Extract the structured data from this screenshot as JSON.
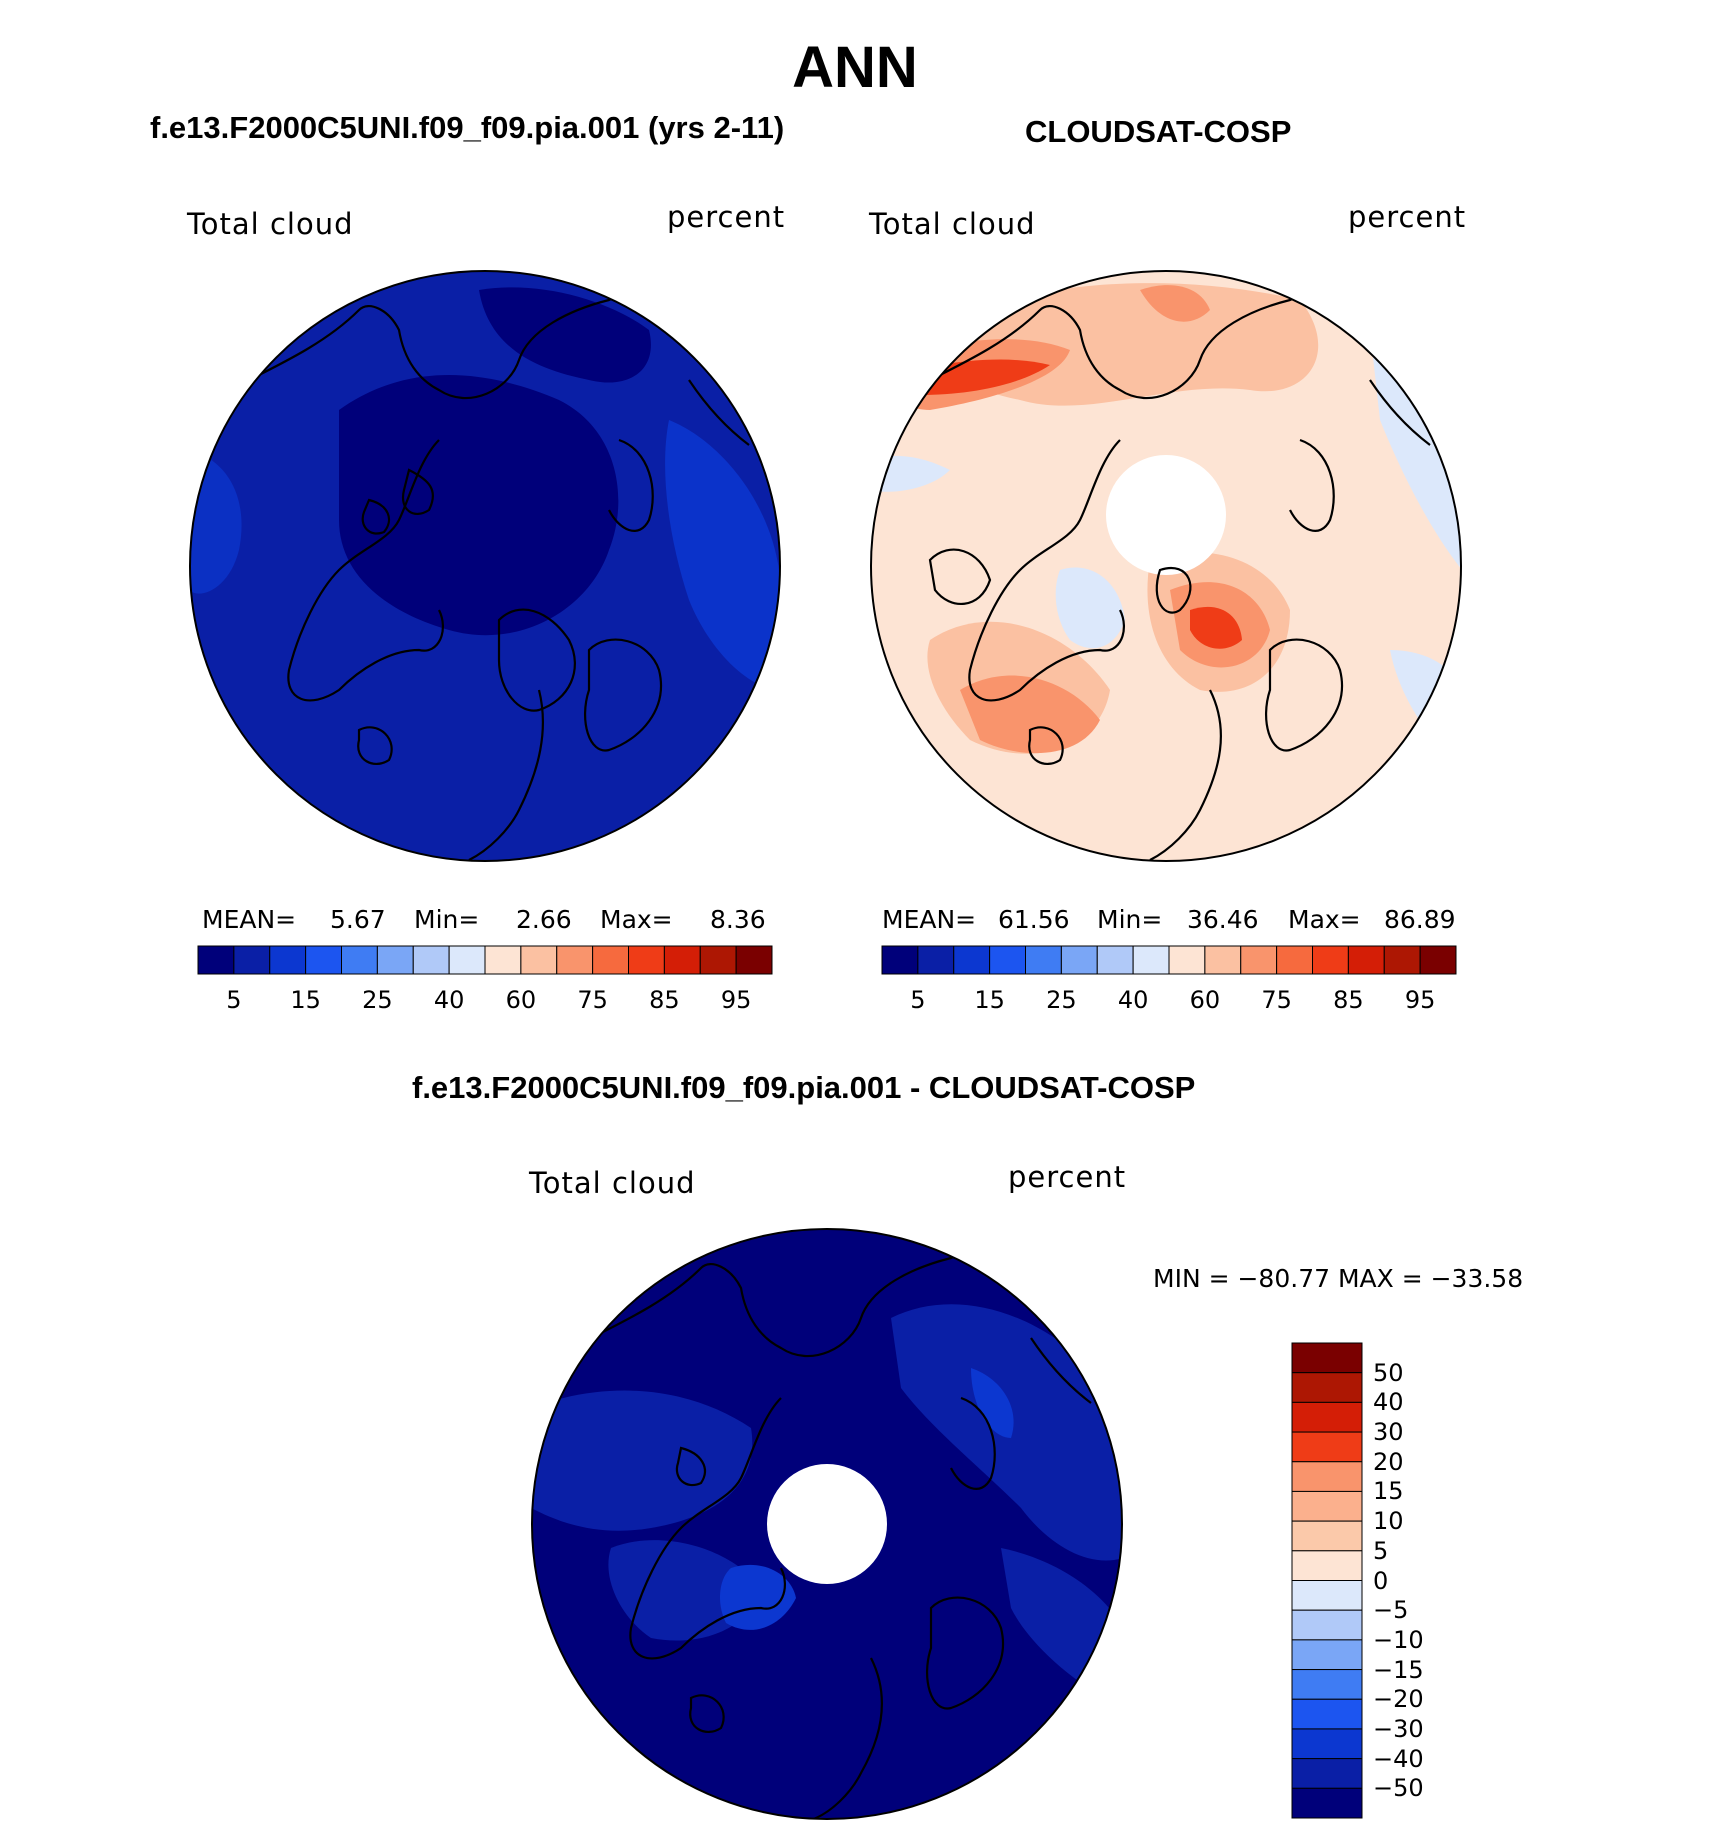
{
  "figure": {
    "season": "ANN"
  },
  "panels": [
    {
      "id": "model",
      "title": "f.e13.F2000C5UNI.f09_f09.pia.001 (yrs 2-11)",
      "left_label": "Total cloud",
      "right_label": "percent",
      "stats": {
        "mean_label": "MEAN=",
        "mean": "5.67",
        "min_label": "Min=",
        "min": "2.66",
        "max_label": "Max=",
        "max": "8.36"
      }
    },
    {
      "id": "obs",
      "title": "CLOUDSAT-COSP",
      "left_label": "Total cloud",
      "right_label": "percent",
      "stats": {
        "mean_label": "MEAN=",
        "mean": "61.56",
        "min_label": "Min=",
        "min": "36.46",
        "max_label": "Max=",
        "max": "86.89"
      }
    },
    {
      "id": "diff",
      "title": "f.e13.F2000C5UNI.f09_f09.pia.001 - CLOUDSAT-COSP",
      "left_label": "Total cloud",
      "right_label": "percent",
      "minmax": "MIN = −80.77 MAX = −33.58"
    }
  ],
  "colorbar_abs": {
    "colors": [
      "#00007a",
      "#0a1fa6",
      "#0c37d0",
      "#1c55f0",
      "#3f7cf3",
      "#7aa6f6",
      "#b0c9f8",
      "#dce8fb",
      "#fde4d4",
      "#fbc1a2",
      "#f9946c",
      "#f66a3e",
      "#ef3c17",
      "#d41e06",
      "#ad1703",
      "#7a0000"
    ],
    "tick_labels": [
      "5",
      "15",
      "25",
      "40",
      "60",
      "75",
      "85",
      "95"
    ]
  },
  "colorbar_diff": {
    "colors": [
      "#7a0000",
      "#ad1703",
      "#d41e06",
      "#ef3c17",
      "#f9946c",
      "#fbb08d",
      "#fbc9aa",
      "#fde4d4",
      "#dce8fb",
      "#b0c9f8",
      "#7aa6f6",
      "#3f7cf3",
      "#1c55f0",
      "#0c37d0",
      "#0a1fa6",
      "#00007a"
    ],
    "tick_labels": [
      "50",
      "40",
      "30",
      "20",
      "15",
      "10",
      "5",
      "0",
      "−5",
      "−10",
      "−15",
      "−20",
      "−30",
      "−40",
      "−50"
    ]
  },
  "colors": {
    "model_base": "#0a1fa6",
    "model_dark": "#00007a",
    "model_light": "#0c37d0",
    "obs_base": "#fde4d4",
    "obs_mid": "#fbc1a2",
    "obs_strong": "#f9946c",
    "obs_hot": "#ef3c17",
    "obs_cool": "#dce8fb",
    "diff_base": "#00007a",
    "diff_mid": "#0a1fa6",
    "diff_light": "#0c37d0"
  }
}
